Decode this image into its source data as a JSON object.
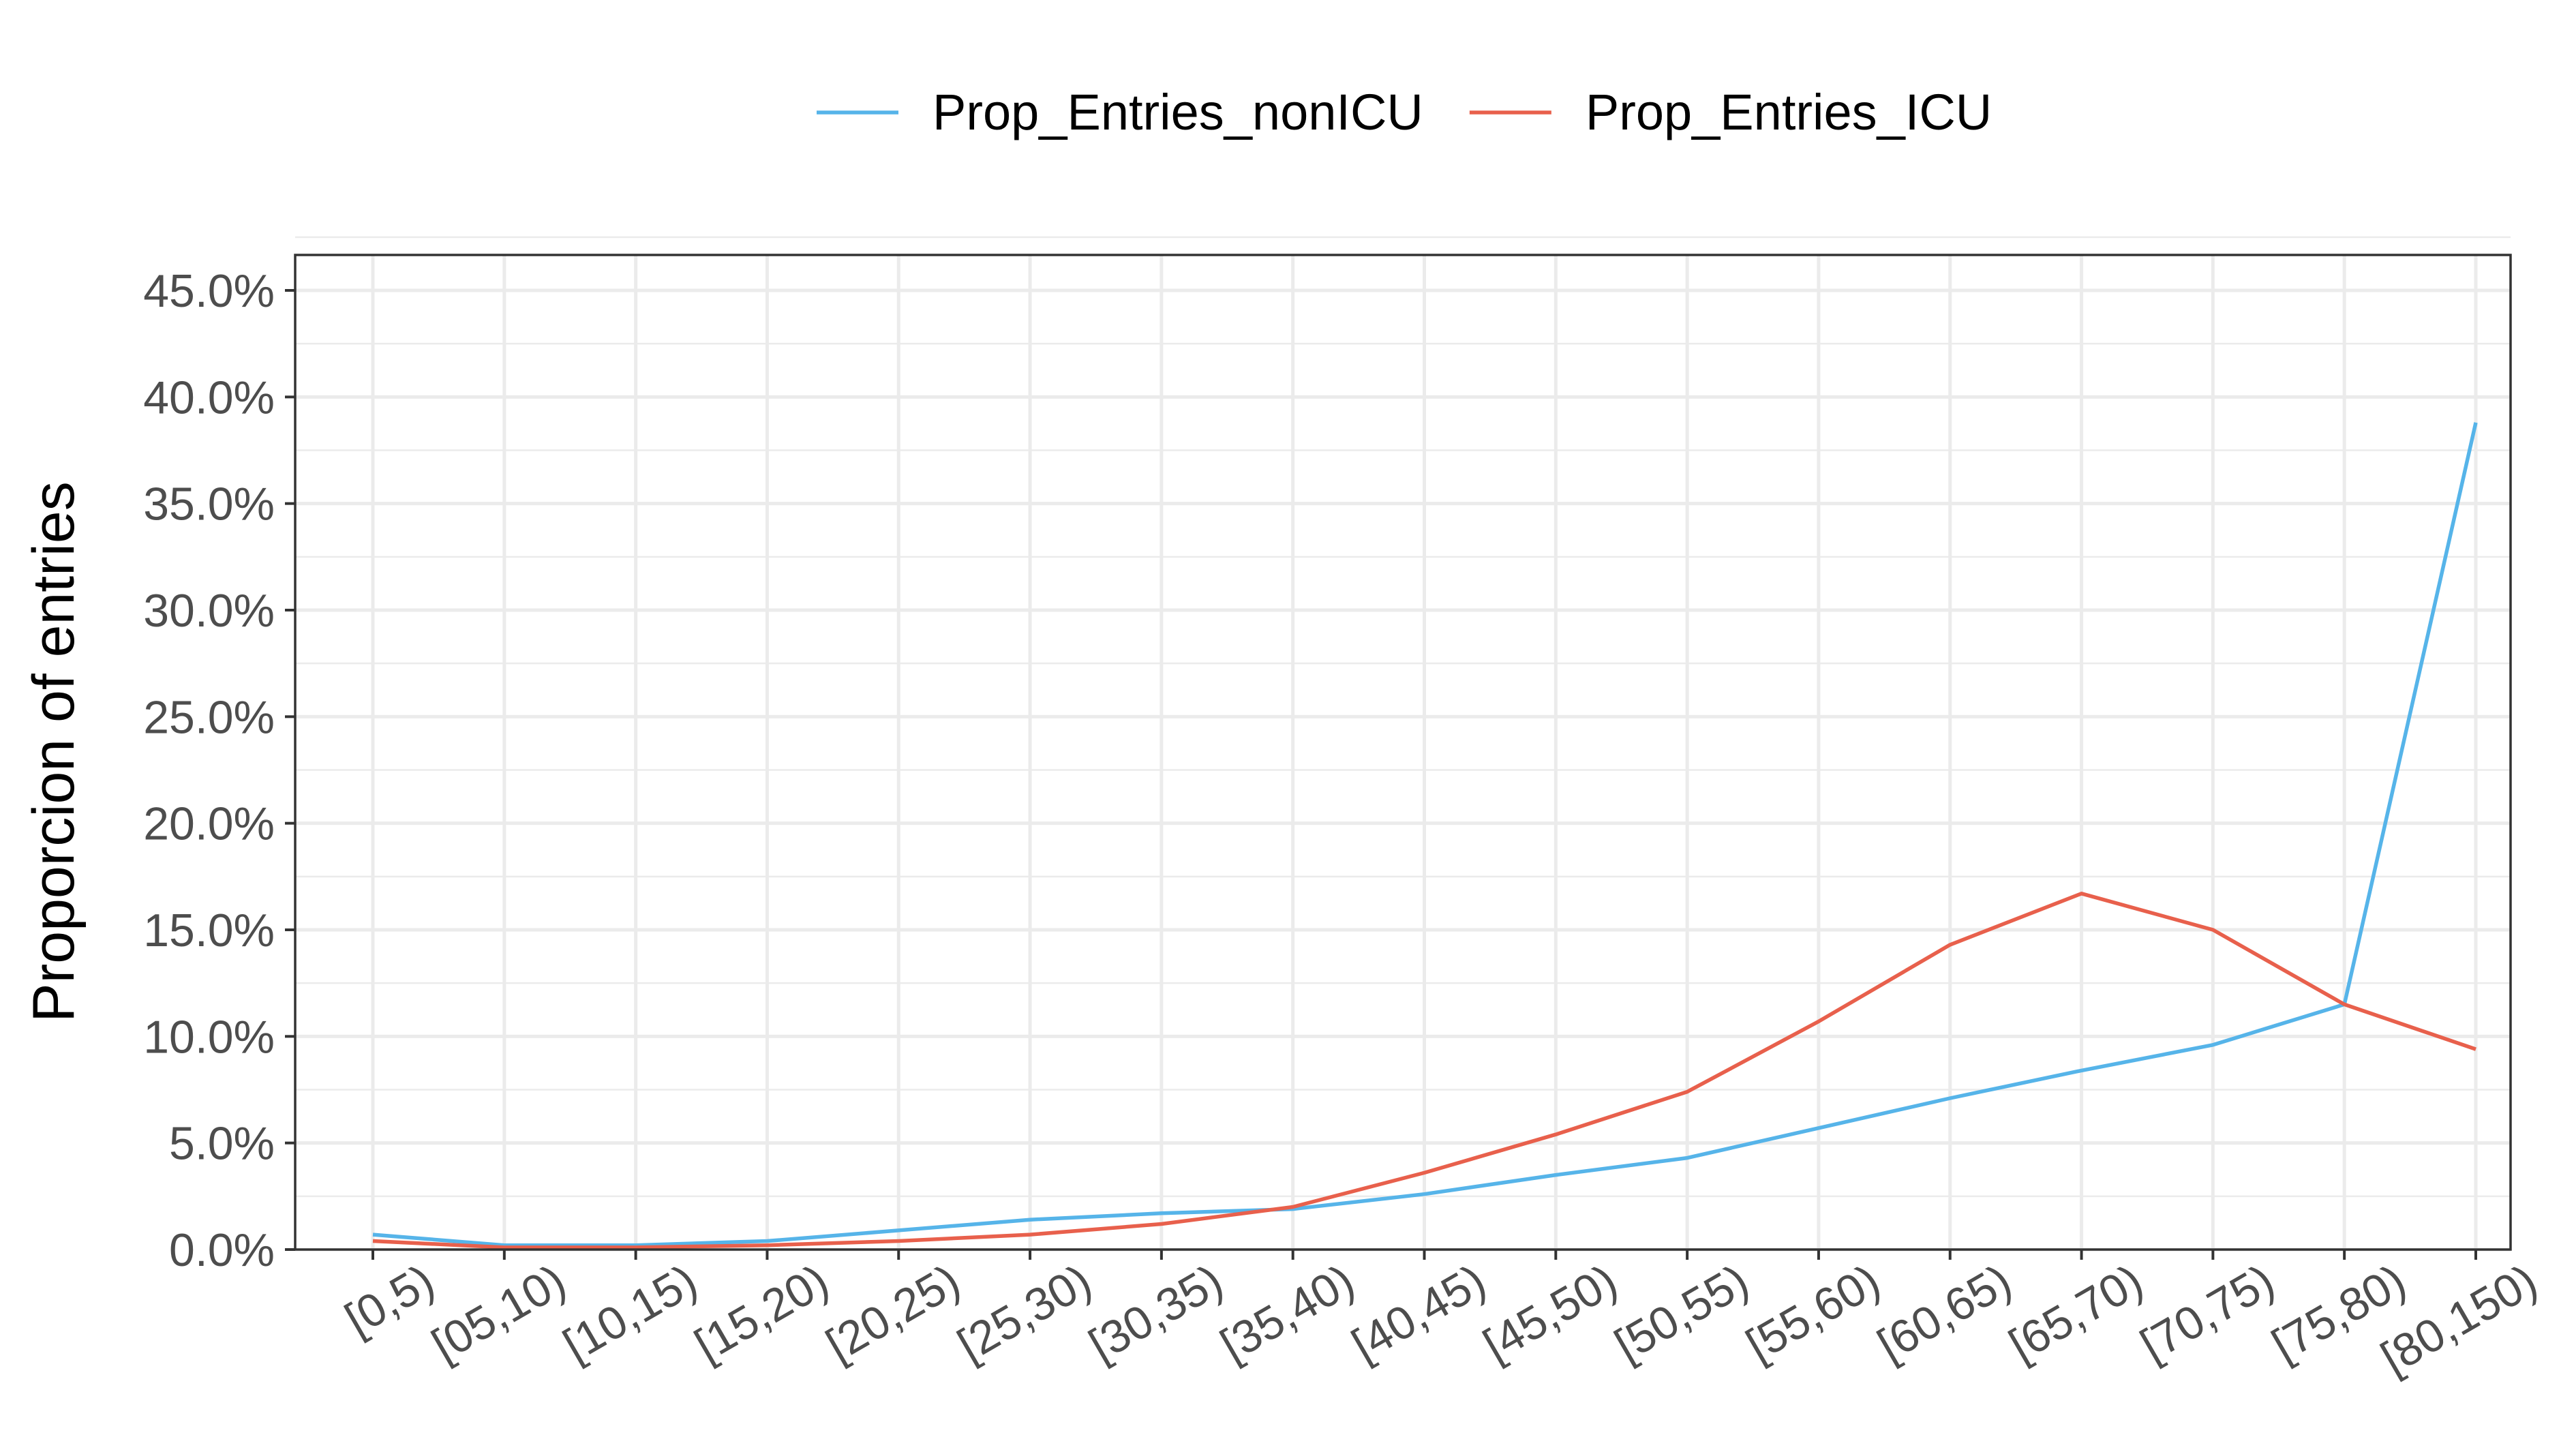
{
  "chart_data": {
    "type": "line",
    "title": "",
    "xlabel": "",
    "ylabel": "Proporcion of entries",
    "categories": [
      "[0,5)",
      "[05,10)",
      "[10,15)",
      "[15,20)",
      "[20,25)",
      "[25,30)",
      "[30,35)",
      "[35,40)",
      "[40,45)",
      "[45,50)",
      "[50,55)",
      "[55,60)",
      "[60,65)",
      "[65,70)",
      "[70,75)",
      "[75,80)",
      "[80,150)"
    ],
    "ylim": [
      0,
      0.47
    ],
    "yticks": [
      0,
      0.05,
      0.1,
      0.15,
      0.2,
      0.25,
      0.3,
      0.35,
      0.4,
      0.45
    ],
    "ytick_labels": [
      "0.0%",
      "5.0%",
      "10.0%",
      "15.0%",
      "20.0%",
      "25.0%",
      "30.0%",
      "35.0%",
      "40.0%",
      "45.0%"
    ],
    "grid": true,
    "legend_position": "top",
    "series": [
      {
        "name": "Prop_Entries_nonICU",
        "color": "#56B4E9",
        "values": [
          0.007,
          0.002,
          0.002,
          0.004,
          0.009,
          0.014,
          0.017,
          0.019,
          0.026,
          0.035,
          0.043,
          0.057,
          0.071,
          0.084,
          0.096,
          0.115,
          0.388
        ]
      },
      {
        "name": "Prop_Entries_ICU",
        "color": "#E8604C",
        "values": [
          0.004,
          0.001,
          0.001,
          0.002,
          0.004,
          0.007,
          0.012,
          0.02,
          0.036,
          0.054,
          0.074,
          0.107,
          0.143,
          0.167,
          0.15,
          0.115,
          0.094
        ]
      }
    ]
  }
}
